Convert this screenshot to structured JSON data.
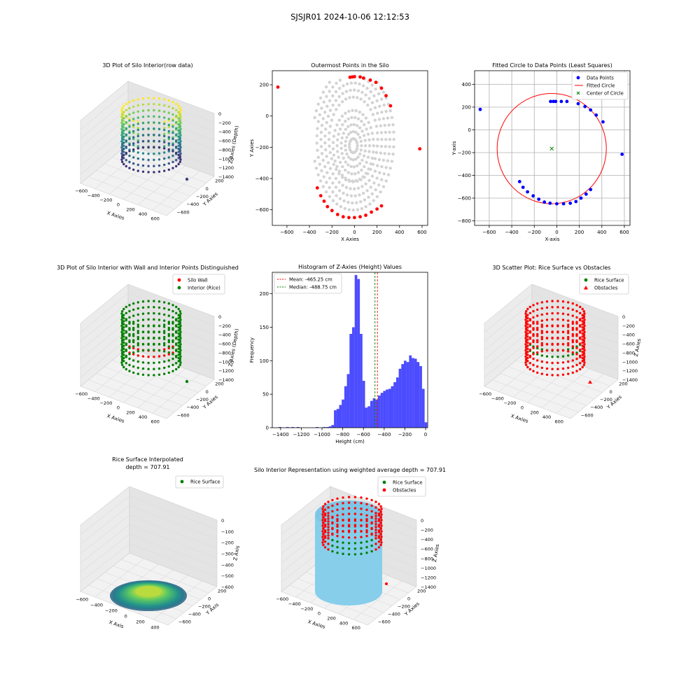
{
  "suptitle": "SJSJR01 2024-10-06 12:12:53",
  "colors": {
    "red": "#ff0000",
    "green": "#008000",
    "blue": "#0000ff",
    "gray": "#d3d3d3",
    "hist": "#0000ff",
    "skyblue": "#87ceeb",
    "pane": "#f2f2f2"
  },
  "chart_data": [
    {
      "type": "scatter3d",
      "title": "3D Plot of Silo Interior(row data)",
      "xlabel": "X Axies",
      "ylabel": "Y Axies",
      "zlabel": "Z Axies (Depth)",
      "xticks": [
        "−600",
        "−400",
        "−200",
        "0",
        "200",
        "400",
        "600"
      ],
      "yticks": [
        "200",
        "0",
        "−200",
        "−400",
        "−600"
      ],
      "zticks": [
        "0",
        "−200",
        "−400",
        "−600",
        "−800",
        "−1000",
        "−1200",
        "−1400"
      ],
      "colormap": "viridis",
      "legend": []
    },
    {
      "type": "scatter",
      "title": "Outermost Points in the Silo",
      "xlabel": "X Axies",
      "ylabel": "Y Axies",
      "xlim": [
        -730,
        650
      ],
      "ylim": [
        -700,
        290
      ],
      "xticks": [
        -600,
        -400,
        -200,
        0,
        200,
        400,
        600
      ],
      "yticks": [
        200,
        0,
        -200,
        -400,
        -600
      ],
      "grid": false,
      "outer_points": [
        [
          -680,
          185
        ],
        [
          50,
          250
        ],
        [
          0,
          252
        ],
        [
          -20,
          250
        ],
        [
          -40,
          248
        ],
        [
          80,
          243
        ],
        [
          140,
          230
        ],
        [
          190,
          215
        ],
        [
          240,
          178
        ],
        [
          280,
          130
        ],
        [
          320,
          65
        ],
        [
          580,
          -210
        ],
        [
          -330,
          -460
        ],
        [
          -300,
          -510
        ],
        [
          -270,
          -545
        ],
        [
          -240,
          -580
        ],
        [
          -200,
          -605
        ],
        [
          -150,
          -630
        ],
        [
          -100,
          -645
        ],
        [
          -50,
          -650
        ],
        [
          0,
          -650
        ],
        [
          50,
          -645
        ],
        [
          100,
          -635
        ],
        [
          150,
          -615
        ],
        [
          200,
          -595
        ],
        [
          240,
          -575
        ]
      ]
    },
    {
      "type": "scatter",
      "title": "Fitted Circle to Data Points (Least Squares)",
      "xlabel": "X-axis",
      "ylabel": "Y-axis",
      "xlim": [
        -730,
        650
      ],
      "ylim": [
        -840,
        520
      ],
      "xticks": [
        -600,
        -400,
        -200,
        0,
        200,
        400,
        600
      ],
      "yticks": [
        400,
        200,
        0,
        -200,
        -400,
        -600,
        -800
      ],
      "grid": true,
      "legend_position": "upper right",
      "legend": [
        "Data Points",
        "Fitted Circle",
        "Center of Circle"
      ],
      "circle_center": [
        -45,
        -165
      ],
      "circle_radius": 485,
      "points": [
        [
          -680,
          180
        ],
        [
          -55,
          250
        ],
        [
          -30,
          250
        ],
        [
          -10,
          250
        ],
        [
          40,
          250
        ],
        [
          90,
          250
        ],
        [
          190,
          230
        ],
        [
          250,
          205
        ],
        [
          300,
          175
        ],
        [
          350,
          130
        ],
        [
          410,
          70
        ],
        [
          580,
          -215
        ],
        [
          -330,
          -455
        ],
        [
          -300,
          -505
        ],
        [
          -260,
          -545
        ],
        [
          -210,
          -580
        ],
        [
          -160,
          -610
        ],
        [
          -110,
          -635
        ],
        [
          -60,
          -645
        ],
        [
          0,
          -650
        ],
        [
          60,
          -650
        ],
        [
          120,
          -645
        ],
        [
          170,
          -630
        ],
        [
          215,
          -600
        ],
        [
          260,
          -565
        ],
        [
          300,
          -525
        ]
      ]
    },
    {
      "type": "scatter3d",
      "title": "3D Plot of Silo Interior with Wall and Interior Points Distinguished",
      "xlabel": "X Axies",
      "ylabel": "Y Axies",
      "zlabel": "Z Axies (Depth)",
      "xticks": [
        "−600",
        "−400",
        "−200",
        "0",
        "200",
        "400",
        "600"
      ],
      "yticks": [
        "200",
        "0",
        "−200",
        "−400",
        "−600"
      ],
      "zticks": [
        "0",
        "−200",
        "−400",
        "−600",
        "−800",
        "−1000",
        "−1200",
        "−1400"
      ],
      "legend": [
        "Silo Wall",
        "Interior (Rice)"
      ]
    },
    {
      "type": "bar",
      "title": "Histogram of Z-Axies (Height) Values",
      "xlabel": "Height (cm)",
      "ylabel": "Frequency",
      "xlim": [
        -1480,
        20
      ],
      "ylim": [
        0,
        232
      ],
      "xticks": [
        -1400,
        -1200,
        -1000,
        -800,
        -600,
        -400,
        -200,
        0
      ],
      "yticks": [
        0,
        50,
        100,
        150,
        200
      ],
      "bin_width": 25,
      "bins": [
        [
          -1420,
          1
        ],
        [
          -1345,
          1
        ],
        [
          -1295,
          1
        ],
        [
          -1245,
          1
        ],
        [
          -1060,
          1
        ],
        [
          -990,
          1
        ],
        [
          -960,
          1
        ],
        [
          -935,
          2
        ],
        [
          -910,
          4
        ],
        [
          -885,
          26
        ],
        [
          -860,
          28
        ],
        [
          -835,
          34
        ],
        [
          -810,
          42
        ],
        [
          -785,
          62
        ],
        [
          -760,
          80
        ],
        [
          -735,
          140
        ],
        [
          -710,
          150
        ],
        [
          -685,
          228
        ],
        [
          -660,
          222
        ],
        [
          -635,
          140
        ],
        [
          -610,
          70
        ],
        [
          -585,
          30
        ],
        [
          -560,
          32
        ],
        [
          -535,
          40
        ],
        [
          -510,
          44
        ],
        [
          -485,
          42
        ],
        [
          -460,
          48
        ],
        [
          -435,
          52
        ],
        [
          -410,
          55
        ],
        [
          -385,
          57
        ],
        [
          -360,
          58
        ],
        [
          -335,
          62
        ],
        [
          -310,
          68
        ],
        [
          -285,
          75
        ],
        [
          -260,
          88
        ],
        [
          -235,
          95
        ],
        [
          -210,
          100
        ],
        [
          -185,
          98
        ],
        [
          -160,
          108
        ],
        [
          -135,
          104
        ],
        [
          -110,
          103
        ],
        [
          -85,
          98
        ],
        [
          -60,
          92
        ],
        [
          -35,
          58
        ],
        [
          -10,
          8
        ]
      ],
      "mean": -465.25,
      "median": -488.75,
      "legend_position": "upper left",
      "legend": [
        "Mean: -465.25 cm",
        "Median: -488.75 cm"
      ]
    },
    {
      "type": "scatter3d",
      "title": "3D Scatter Plot: Rice Surface vs Obstacles",
      "xlabel": "X Axies",
      "ylabel": "Y Axies",
      "zlabel": "Z Axies",
      "xticks": [
        "−600",
        "−400",
        "−200",
        "0",
        "200",
        "400",
        "600"
      ],
      "yticks": [
        "200",
        "0",
        "−200",
        "−400",
        "−600"
      ],
      "zticks": [
        "0",
        "−200",
        "−400",
        "−600",
        "−800",
        "−1000",
        "−1200",
        "−1400"
      ],
      "legend": [
        "Rice Surface",
        "Obstacles"
      ]
    },
    {
      "type": "surface3d",
      "title": "Rice Surface Interpolated",
      "subtitle": "depth = 707.91",
      "xlabel": "X Axis",
      "ylabel": "Y Axis",
      "zlabel": "Z Axis",
      "xticks": [
        "−600",
        "−400",
        "−200",
        "0",
        "200",
        "400"
      ],
      "yticks": [
        "200",
        "0",
        "−200",
        "−400",
        "−600"
      ],
      "zticks": [
        "0",
        "−100",
        "−200",
        "−300",
        "−400",
        "−500",
        "−600"
      ],
      "legend": [
        "Rice Surface"
      ]
    },
    {
      "type": "scatter3d",
      "title": "Silo Interior Representation using weighted average depth = 707.91",
      "xlabel": "X Axies",
      "ylabel": "Y Axies",
      "zlabel": "Z Axies",
      "xticks": [
        "−600",
        "−400",
        "−200",
        "0",
        "200",
        "400",
        "600"
      ],
      "yticks": [
        "200",
        "0",
        "−200",
        "−400",
        "−600"
      ],
      "zticks": [
        "0",
        "−200",
        "−400",
        "−600",
        "−800",
        "−1000",
        "−1200",
        "−1400"
      ],
      "legend": [
        "Rice Surface",
        "Obstacles"
      ]
    }
  ]
}
